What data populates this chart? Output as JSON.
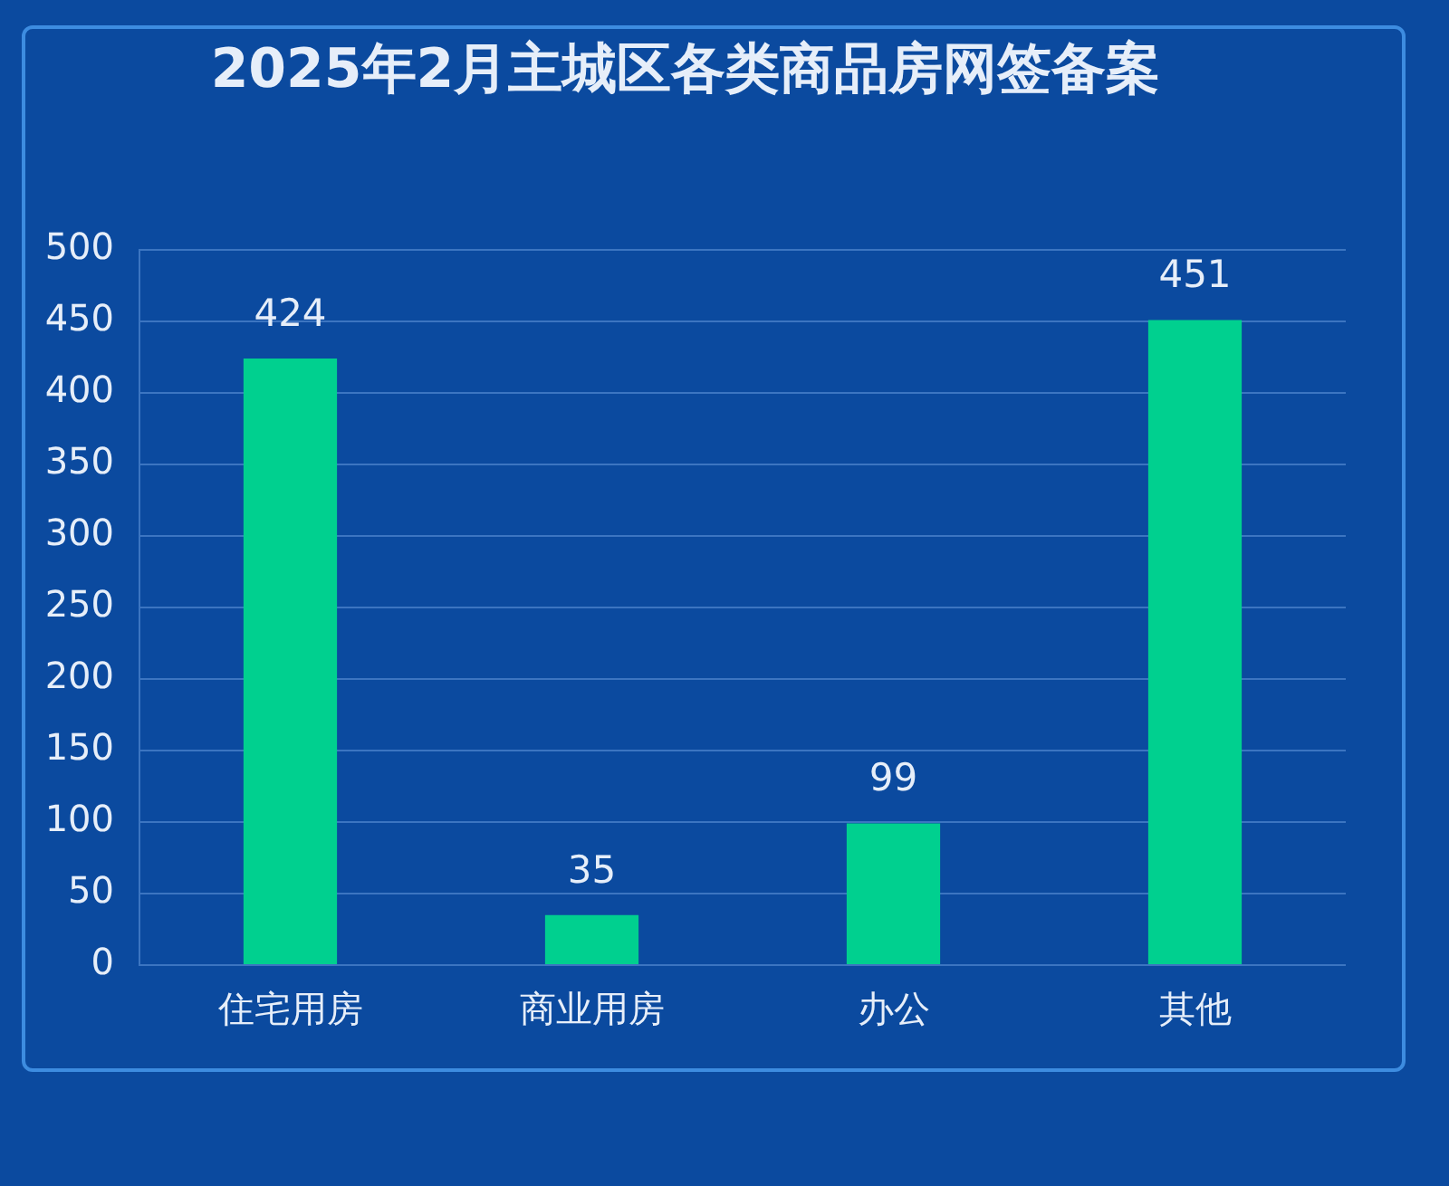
{
  "chart_data": {
    "type": "bar",
    "title": "2025年2月主城区各类商品房网签备案",
    "categories": [
      "住宅用房",
      "商业用房",
      "办公",
      "其他"
    ],
    "values": [
      424,
      35,
      99,
      451
    ],
    "color": "#00d08f",
    "ylim": [
      0,
      500
    ],
    "yticks": [
      0,
      50,
      100,
      150,
      200,
      250,
      300,
      350,
      400,
      450,
      500
    ],
    "grid": "y",
    "data_labels": true
  }
}
